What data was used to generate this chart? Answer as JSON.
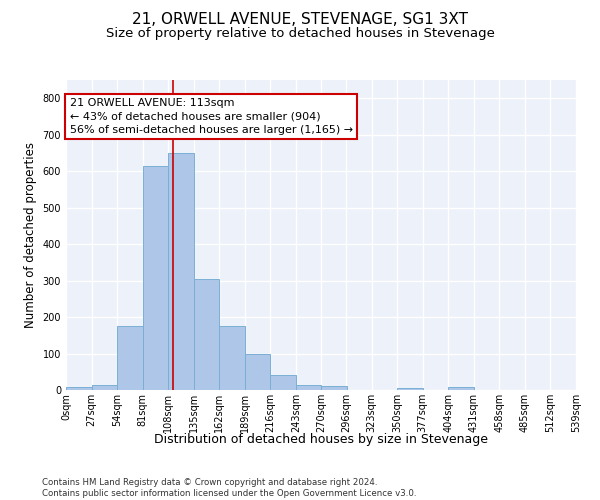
{
  "title": "21, ORWELL AVENUE, STEVENAGE, SG1 3XT",
  "subtitle": "Size of property relative to detached houses in Stevenage",
  "xlabel": "Distribution of detached houses by size in Stevenage",
  "ylabel": "Number of detached properties",
  "bin_edges": [
    0,
    27,
    54,
    81,
    108,
    135,
    162,
    189,
    216,
    243,
    270,
    296,
    323,
    350,
    377,
    404,
    431,
    458,
    485,
    512,
    539
  ],
  "bar_heights": [
    8,
    13,
    175,
    615,
    650,
    305,
    175,
    100,
    40,
    13,
    10,
    0,
    0,
    5,
    0,
    8,
    0,
    0,
    0,
    0
  ],
  "bar_color": "#aec6e8",
  "bar_edgecolor": "#7aafd4",
  "bar_linewidth": 0.7,
  "property_size": 113,
  "annotation_line1": "21 ORWELL AVENUE: 113sqm",
  "annotation_line2": "← 43% of detached houses are smaller (904)",
  "annotation_line3": "56% of semi-detached houses are larger (1,165) →",
  "annotation_box_color": "white",
  "annotation_box_edgecolor": "#cc0000",
  "vline_color": "#cc0000",
  "vline_linewidth": 1.2,
  "ylim": [
    0,
    850
  ],
  "yticks": [
    0,
    100,
    200,
    300,
    400,
    500,
    600,
    700,
    800
  ],
  "background_color": "#edf2fa",
  "grid_color": "white",
  "title_fontsize": 11,
  "subtitle_fontsize": 9.5,
  "xlabel_fontsize": 9,
  "ylabel_fontsize": 8.5,
  "tick_fontsize": 7,
  "annotation_fontsize": 8,
  "footer_text": "Contains HM Land Registry data © Crown copyright and database right 2024.\nContains public sector information licensed under the Open Government Licence v3.0."
}
